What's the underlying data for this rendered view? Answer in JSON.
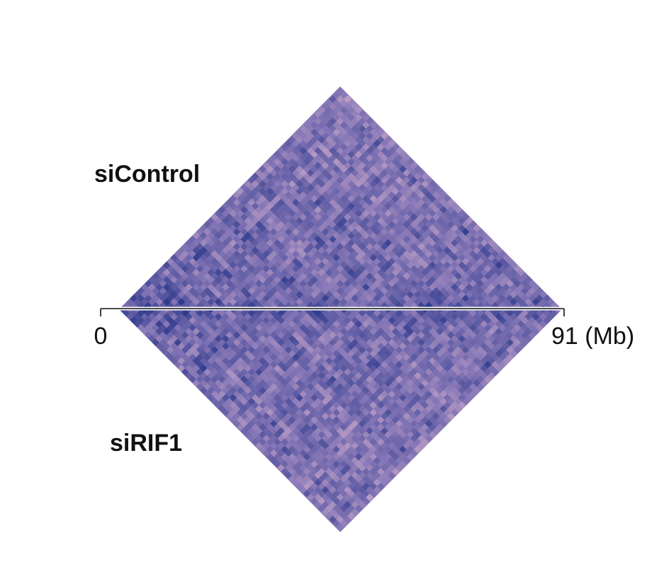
{
  "chart_data": {
    "type": "heatmap",
    "title": "",
    "description_shape": "diamond",
    "panels": [
      {
        "label": "siControl",
        "position": "top"
      },
      {
        "label": "siRIF1",
        "position": "bottom"
      }
    ],
    "x_axis": {
      "min": 0,
      "max": 91,
      "tick_labels": [
        "0",
        "91 (Mb)"
      ]
    },
    "colors": {
      "high": "#2e3a8c",
      "mid": "#8a7ab8",
      "low": "#f2c7d2"
    }
  }
}
